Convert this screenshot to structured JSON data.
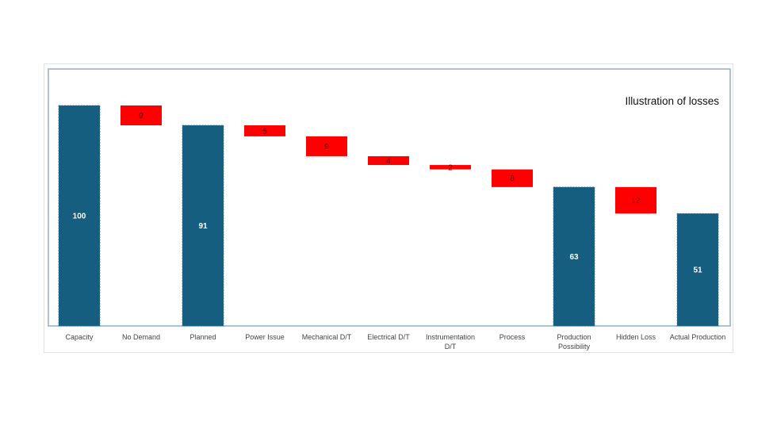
{
  "chart_data": {
    "type": "bar",
    "subtype": "waterfall",
    "title": "Illustration of losses",
    "categories": [
      "Capacity",
      "No Demand",
      "Planned",
      "Power Issue",
      "Mechanical D/T",
      "Electrical D/T",
      "Instrumentation D/T",
      "Process",
      "Production Possibility",
      "Hidden Loss",
      "Actual Production"
    ],
    "category_lines": [
      [
        "Capacity"
      ],
      [
        "No Demand"
      ],
      [
        "Planned"
      ],
      [
        "Power Issue"
      ],
      [
        "Mechanical D/T"
      ],
      [
        "Electrical D/T"
      ],
      [
        "Instrumentation",
        "D/T"
      ],
      [
        "Process"
      ],
      [
        "Production",
        "Possibility"
      ],
      [
        "Hidden Loss"
      ],
      [
        "Actual Production"
      ]
    ],
    "values": [
      100,
      9,
      91,
      5,
      9,
      4,
      2,
      8,
      63,
      12,
      51
    ],
    "kinds": [
      "total",
      "loss",
      "total",
      "loss",
      "loss",
      "loss",
      "loss",
      "loss",
      "total",
      "loss",
      "total"
    ],
    "ylim": [
      0,
      100
    ],
    "grid": false,
    "legend": "none",
    "colors": {
      "total": "#165e80",
      "loss": "#ff0000",
      "frame": "#93aec4"
    }
  }
}
